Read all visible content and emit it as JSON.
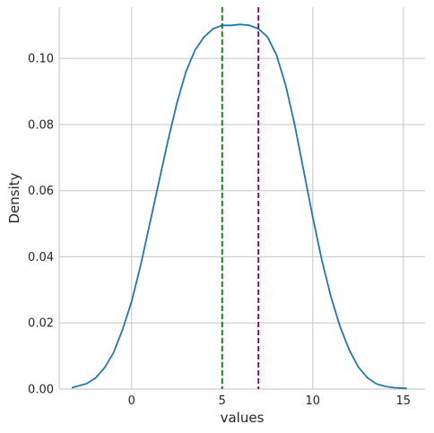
{
  "chart_data": {
    "type": "line",
    "title": "",
    "xlabel": "values",
    "ylabel": "Density",
    "xlim": [
      -4.0,
      16.2
    ],
    "ylim": [
      0.0,
      0.1155
    ],
    "xticks": [
      0,
      5,
      10,
      15
    ],
    "xtick_labels": [
      "0",
      "5",
      "10",
      "15"
    ],
    "yticks": [
      0.0,
      0.02,
      0.04,
      0.06,
      0.08,
      0.1
    ],
    "ytick_labels": [
      "0.00",
      "0.02",
      "0.04",
      "0.06",
      "0.08",
      "0.10"
    ],
    "grid": true,
    "series": [
      {
        "color": "#1f77b4",
        "x": [
          -3.3,
          -2.5,
          -2.0,
          -1.5,
          -1.0,
          -0.5,
          0.0,
          0.5,
          1.0,
          1.5,
          2.0,
          2.5,
          3.0,
          3.5,
          4.0,
          4.5,
          5.0,
          5.5,
          6.0,
          6.5,
          7.0,
          7.5,
          8.0,
          8.5,
          9.0,
          9.5,
          10.0,
          10.5,
          11.0,
          11.5,
          12.0,
          12.5,
          13.0,
          13.5,
          14.0,
          14.5,
          15.2
        ],
        "y": [
          0.0004,
          0.0016,
          0.0033,
          0.0064,
          0.011,
          0.018,
          0.0265,
          0.0375,
          0.05,
          0.0625,
          0.075,
          0.0865,
          0.096,
          0.1025,
          0.1065,
          0.109,
          0.11,
          0.11,
          0.1103,
          0.11,
          0.109,
          0.1065,
          0.101,
          0.092,
          0.08,
          0.066,
          0.052,
          0.039,
          0.028,
          0.019,
          0.012,
          0.0068,
          0.0035,
          0.0016,
          0.0008,
          0.0004,
          0.0002
        ]
      }
    ],
    "vlines": [
      {
        "x": 5.0,
        "color": "#008000",
        "style": "dashed"
      },
      {
        "x": 7.0,
        "color": "#800080",
        "style": "dashed"
      }
    ]
  }
}
